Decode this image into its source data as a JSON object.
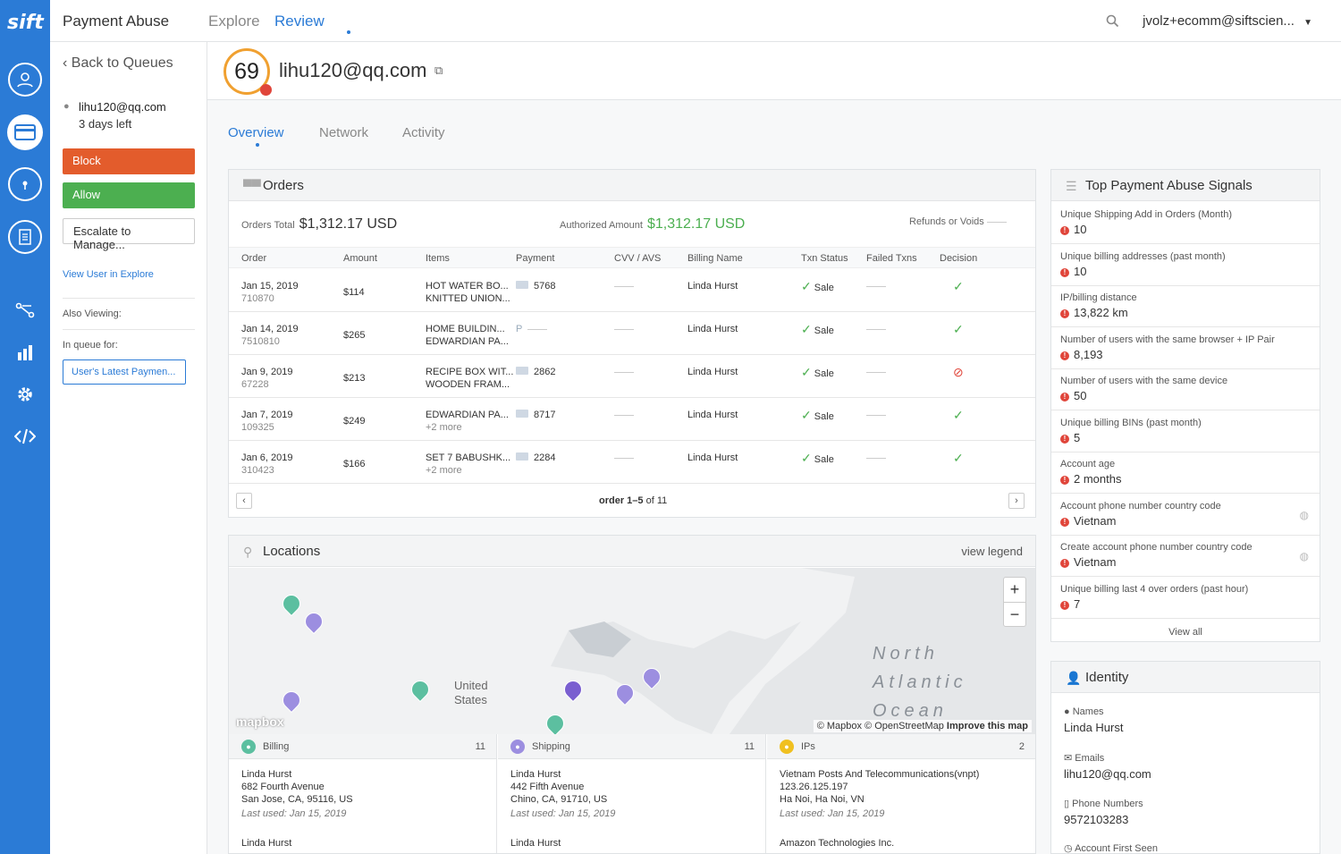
{
  "brand": {
    "logo": "sift",
    "accent": "#2b7bd6"
  },
  "topbar": {
    "title": "Payment Abuse",
    "tabs": [
      "Explore",
      "Review"
    ],
    "active_tab": "Review",
    "user": "jvolz+ecomm@siftscien..."
  },
  "left": {
    "back": "Back to Queues",
    "user": "lihu120@qq.com",
    "days_left": "3 days left",
    "block": "Block",
    "allow": "Allow",
    "escalate": "Escalate to Manage...",
    "view_user": "View User in Explore",
    "also_viewing": "Also Viewing:",
    "in_queue": "In queue for:",
    "queue_name": "User's Latest Paymen..."
  },
  "header": {
    "score": "69",
    "email": "lihu120@qq.com"
  },
  "subtabs": [
    "Overview",
    "Network",
    "Activity"
  ],
  "orders": {
    "title": "Orders",
    "total_label": "Orders Total",
    "total_value": "$1,312.17 USD",
    "auth_label": "Authorized Amount",
    "auth_value": "$1,312.17 USD",
    "refunds_label": "Refunds or Voids",
    "columns": [
      "Order",
      "Amount",
      "Items",
      "Payment",
      "CVV / AVS",
      "Billing Name",
      "Txn Status",
      "Failed Txns",
      "Decision"
    ],
    "rows": [
      {
        "date": "Jan 15, 2019",
        "id": "710870",
        "amount": "$114",
        "item1": "HOT WATER BO...",
        "item2": "KNITTED UNION...",
        "payment": "5768",
        "billing": "Linda Hurst",
        "status": "Sale",
        "decision": "accept"
      },
      {
        "date": "Jan 14, 2019",
        "id": "7510810",
        "amount": "$265",
        "item1": "HOME BUILDIN...",
        "item2": "EDWARDIAN PA...",
        "payment": "",
        "billing": "Linda Hurst",
        "status": "Sale",
        "decision": "accept"
      },
      {
        "date": "Jan 9, 2019",
        "id": "67228",
        "amount": "$213",
        "item1": "RECIPE BOX WIT...",
        "item2": "WOODEN FRAM...",
        "payment": "2862",
        "billing": "Linda Hurst",
        "status": "Sale",
        "decision": "block"
      },
      {
        "date": "Jan 7, 2019",
        "id": "109325",
        "amount": "$249",
        "item1": "EDWARDIAN PA...",
        "item2": "+2 more",
        "payment": "8717",
        "billing": "Linda Hurst",
        "status": "Sale",
        "decision": "accept"
      },
      {
        "date": "Jan 6, 2019",
        "id": "310423",
        "amount": "$166",
        "item1": "SET 7 BABUSHK...",
        "item2": "+2 more",
        "payment": "2284",
        "billing": "Linda Hurst",
        "status": "Sale",
        "decision": "accept"
      }
    ],
    "pager": "order 1–5",
    "pager_of": "of 11"
  },
  "locations": {
    "title": "Locations",
    "legend": "view legend",
    "map_label_us_1": "United",
    "map_label_us_2": "States",
    "ocean_1": "North",
    "ocean_2": "Atlantic",
    "ocean_3": "Ocean",
    "attribution": "© Mapbox © OpenStreetMap",
    "improve": "Improve this map",
    "mapbox_logo": "mapbox",
    "zoom_in": "+",
    "zoom_out": "−",
    "columns": [
      {
        "title": "Billing",
        "count": "11",
        "color": "#5cbfa0",
        "name": "Linda Hurst",
        "line1": "682 Fourth Avenue",
        "line2": "San Jose, CA, 95116, US",
        "last": "Last used: Jan 15, 2019",
        "next": "Linda Hurst"
      },
      {
        "title": "Shipping",
        "count": "11",
        "color": "#9c8ee0",
        "name": "Linda Hurst",
        "line1": "442 Fifth Avenue",
        "line2": "Chino, CA, 91710, US",
        "last": "Last used: Jan 15, 2019",
        "next": "Linda Hurst"
      },
      {
        "title": "IPs",
        "count": "2",
        "color": "#f0c020",
        "name": "Vietnam Posts And Telecommunications(vnpt)",
        "line1": "123.26.125.197",
        "line2": "Ha Noi, Ha Noi, VN",
        "last": "Last used: Jan 15, 2019",
        "next": "Amazon Technologies Inc."
      }
    ]
  },
  "signals": {
    "title": "Top Payment Abuse Signals",
    "items": [
      {
        "label": "Unique Shipping Add in Orders (Month)",
        "value": "10"
      },
      {
        "label": "Unique billing addresses (past month)",
        "value": "10"
      },
      {
        "label": "IP/billing distance",
        "value": "13,822 km"
      },
      {
        "label": "Number of users with the same browser + IP Pair",
        "value": "8,193"
      },
      {
        "label": "Number of users with the same device",
        "value": "50"
      },
      {
        "label": "Unique billing BINs (past month)",
        "value": "5"
      },
      {
        "label": "Account age",
        "value": "2 months"
      },
      {
        "label": "Account phone number country code",
        "value": "Vietnam"
      },
      {
        "label": "Create account phone number country code",
        "value": "Vietnam"
      },
      {
        "label": "Unique billing last 4 over orders (past hour)",
        "value": "7"
      }
    ],
    "view_all": "View all"
  },
  "identity": {
    "title": "Identity",
    "names_label": "Names",
    "names": "Linda Hurst",
    "emails_label": "Emails",
    "emails": "lihu120@qq.com",
    "phones_label": "Phone Numbers",
    "phones": "9572103283",
    "first_seen_label": "Account First Seen"
  }
}
